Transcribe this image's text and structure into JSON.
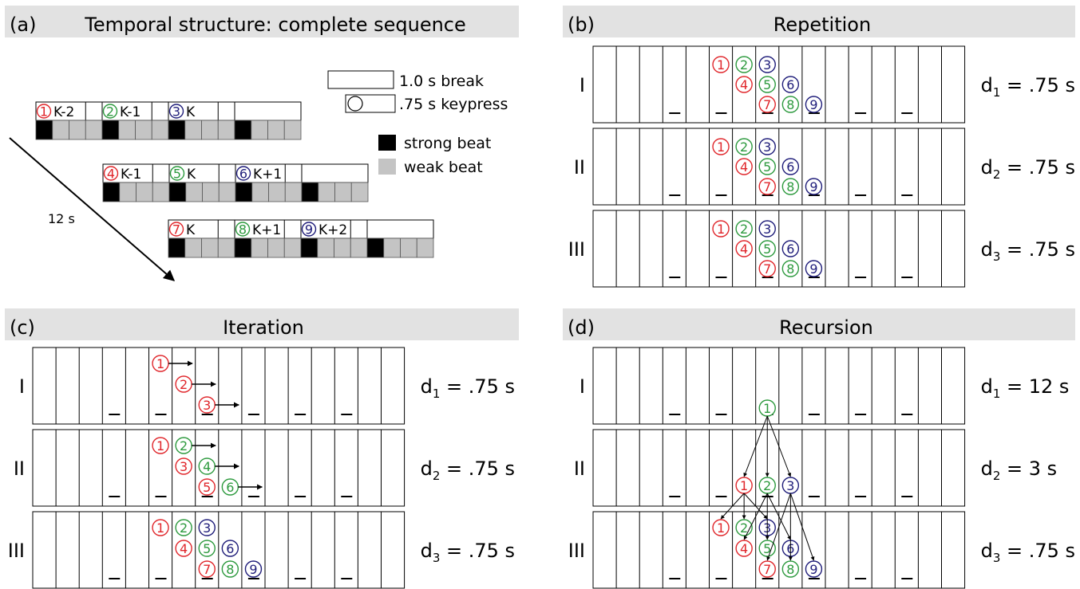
{
  "panels": {
    "a": {
      "letter": "(a)",
      "title": "Temporal structure: complete sequence",
      "legend": {
        "break": "1.0 s break",
        "keypress": ".75 s keypress",
        "strong": "strong beat",
        "weak": "weak beat"
      },
      "time_label": "12 s",
      "rows": [
        {
          "labels": [
            "K-2",
            "K-1",
            "K"
          ],
          "nums": [
            "1",
            "2",
            "3"
          ]
        },
        {
          "labels": [
            "K-1",
            "K",
            "K+1"
          ],
          "nums": [
            "4",
            "5",
            "6"
          ]
        },
        {
          "labels": [
            "K",
            "K+1",
            "K+2"
          ],
          "nums": [
            "7",
            "8",
            "9"
          ]
        }
      ]
    },
    "b": {
      "letter": "(b)",
      "title": "Repetition",
      "rows": [
        {
          "roman": "I",
          "d_sub": "1",
          "d_val": " = .75 s"
        },
        {
          "roman": "II",
          "d_sub": "2",
          "d_val": " = .75 s"
        },
        {
          "roman": "III",
          "d_sub": "3",
          "d_val": " = .75 s"
        }
      ]
    },
    "c": {
      "letter": "(c)",
      "title": "Iteration",
      "rows": [
        {
          "roman": "I",
          "d_sub": "1",
          "d_val": " = .75 s"
        },
        {
          "roman": "II",
          "d_sub": "2",
          "d_val": " = .75 s"
        },
        {
          "roman": "III",
          "d_sub": "3",
          "d_val": " = .75 s"
        }
      ]
    },
    "d": {
      "letter": "(d)",
      "title": "Recursion",
      "rows": [
        {
          "roman": "I",
          "d_sub": "1",
          "d_val": " = 12 s"
        },
        {
          "roman": "II",
          "d_sub": "2",
          "d_val": " = 3 s"
        },
        {
          "roman": "III",
          "d_sub": "3",
          "d_val": " = .75 s"
        }
      ]
    }
  },
  "colors": {
    "red": "#e0262b",
    "green": "#2d9a3e",
    "navy": "#1f1d7a",
    "header_bg": "#e2e2e2",
    "weak": "#c4c4c4",
    "strong": "#000000"
  }
}
